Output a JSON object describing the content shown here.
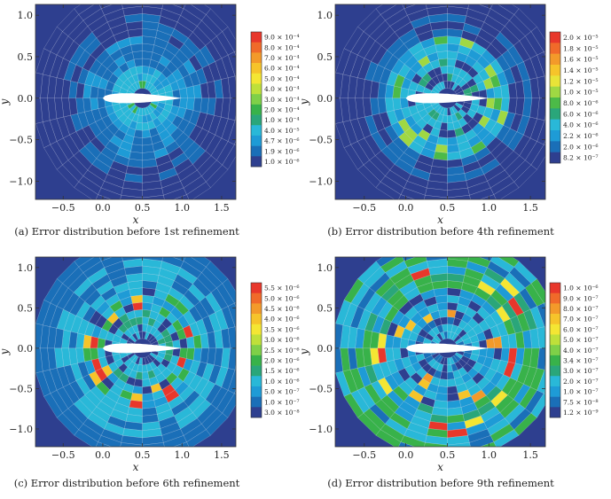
{
  "chart_data": [
    {
      "type": "heatmap",
      "caption": "(a) Error distribution before 1st refinement",
      "xlabel": "x",
      "ylabel": "y",
      "xlim": [
        -0.85,
        1.68
      ],
      "ylim": [
        -1.22,
        1.13
      ],
      "xticks": [
        -0.5,
        0.0,
        0.5,
        1.0,
        1.5
      ],
      "xtick_labels": [
        "−0.5",
        "0.0",
        "0.5",
        "1.0",
        "1.5"
      ],
      "yticks": [
        -1.0,
        -0.5,
        0.0,
        0.5,
        1.0
      ],
      "ytick_labels": [
        "−1.0",
        "−0.5",
        "0.0",
        "0.5",
        "1.0"
      ],
      "colorbar_labels": [
        "9.0 × 10⁻⁴",
        "8.0 × 10⁻⁴",
        "7.0 × 10⁻⁴",
        "6.0 × 10⁻⁴",
        "5.0 × 10⁻⁴",
        "4.0 × 10⁻⁴",
        "3.0 × 10⁻⁴",
        "2.0 × 10⁻⁴",
        "1.0 × 10⁻⁴",
        "4.0 × 10⁻⁵",
        "4.7 × 10⁻⁶",
        "1.9 × 10⁻⁶",
        "1.0 × 10⁻⁶"
      ],
      "colorbar_colors": [
        "#e8372b",
        "#f06a2a",
        "#f39a2a",
        "#f6c42a",
        "#f4e633",
        "#bfe03a",
        "#7fd048",
        "#38b24a",
        "#2aa67a",
        "#29b8d8",
        "#1e9bd6",
        "#1a6fb8",
        "#2e3f8f"
      ],
      "grid": true
    },
    {
      "type": "heatmap",
      "caption": "(b) Error distribution before 4th refinement",
      "xlabel": "x",
      "ylabel": "y",
      "xlim": [
        -0.85,
        1.68
      ],
      "ylim": [
        -1.22,
        1.13
      ],
      "xticks": [
        -0.5,
        0.0,
        0.5,
        1.0,
        1.5
      ],
      "xtick_labels": [
        "−0.5",
        "0.0",
        "0.5",
        "1.0",
        "1.5"
      ],
      "yticks": [
        -1.0,
        -0.5,
        0.0,
        0.5,
        1.0
      ],
      "ytick_labels": [
        "−1.0",
        "−0.5",
        "0.0",
        "0.5",
        "1.0"
      ],
      "colorbar_labels": [
        "2.0 × 10⁻⁵",
        "1.8 × 10⁻⁵",
        "1.6 × 10⁻⁵",
        "1.4 × 10⁻⁵",
        "1.2 × 10⁻⁵",
        "1.0 × 10⁻⁵",
        "8.0 × 10⁻⁶",
        "6.0 × 10⁻⁶",
        "4.0 × 10⁻⁶",
        "2.2 × 10⁻⁶",
        "2.0 × 10⁻⁶",
        "8.2 × 10⁻⁷"
      ],
      "colorbar_colors": [
        "#e8372b",
        "#f06a2a",
        "#f39a2a",
        "#f6c42a",
        "#e8e438",
        "#9fd843",
        "#4cba48",
        "#2aa67a",
        "#29b8d8",
        "#1e9bd6",
        "#1a6fb8",
        "#2e3f8f"
      ],
      "grid": true
    },
    {
      "type": "heatmap",
      "caption": "(c) Error distribution before 6th refinement",
      "xlabel": "x",
      "ylabel": "y",
      "xlim": [
        -0.85,
        1.68
      ],
      "ylim": [
        -1.22,
        1.13
      ],
      "xticks": [
        -0.5,
        0.0,
        0.5,
        1.0,
        1.5
      ],
      "xtick_labels": [
        "−0.5",
        "0.0",
        "0.5",
        "1.0",
        "1.5"
      ],
      "yticks": [
        -1.0,
        -0.5,
        0.0,
        0.5,
        1.0
      ],
      "ytick_labels": [
        "−1.0",
        "−0.5",
        "0.0",
        "0.5",
        "1.0"
      ],
      "colorbar_labels": [
        "5.5 × 10⁻⁶",
        "5.0 × 10⁻⁶",
        "4.5 × 10⁻⁶",
        "4.0 × 10⁻⁶",
        "3.5 × 10⁻⁶",
        "3.0 × 10⁻⁶",
        "2.5 × 10⁻⁶",
        "2.0 × 10⁻⁶",
        "1.5 × 10⁻⁶",
        "1.0 × 10⁻⁶",
        "5.0 × 10⁻⁷",
        "1.0 × 10⁻⁷",
        "3.0 × 10⁻⁸"
      ],
      "colorbar_colors": [
        "#e8372b",
        "#f06a2a",
        "#f39a2a",
        "#f6c42a",
        "#f4e633",
        "#bfe03a",
        "#7fd048",
        "#38b24a",
        "#2aa67a",
        "#29b8d8",
        "#1e9bd6",
        "#1a6fb8",
        "#2e3f8f"
      ],
      "grid": true
    },
    {
      "type": "heatmap",
      "caption": "(d) Error distribution before 9th refinement",
      "xlabel": "x",
      "ylabel": "y",
      "xlim": [
        -0.85,
        1.68
      ],
      "ylim": [
        -1.22,
        1.13
      ],
      "xticks": [
        -0.5,
        0.0,
        0.5,
        1.0,
        1.5
      ],
      "xtick_labels": [
        "−0.5",
        "0.0",
        "0.5",
        "1.0",
        "1.5"
      ],
      "yticks": [
        -1.0,
        -0.5,
        0.0,
        0.5,
        1.0
      ],
      "ytick_labels": [
        "−1.0",
        "−0.5",
        "0.0",
        "0.5",
        "1.0"
      ],
      "colorbar_labels": [
        "1.0 × 10⁻⁶",
        "9.0 × 10⁻⁷",
        "8.0 × 10⁻⁷",
        "7.0 × 10⁻⁷",
        "6.0 × 10⁻⁷",
        "5.0 × 10⁻⁷",
        "4.0 × 10⁻⁷",
        "3.4 × 10⁻⁷",
        "3.0 × 10⁻⁷",
        "2.0 × 10⁻⁷",
        "1.0 × 10⁻⁷",
        "7.5 × 10⁻⁸",
        "1.2 × 10⁻⁹"
      ],
      "colorbar_colors": [
        "#e8372b",
        "#f06a2a",
        "#f39a2a",
        "#f6c42a",
        "#f4e633",
        "#bfe03a",
        "#7fd048",
        "#38b24a",
        "#2aa67a",
        "#29b8d8",
        "#1e9bd6",
        "#1a6fb8",
        "#2e3f8f"
      ],
      "grid": true
    }
  ]
}
